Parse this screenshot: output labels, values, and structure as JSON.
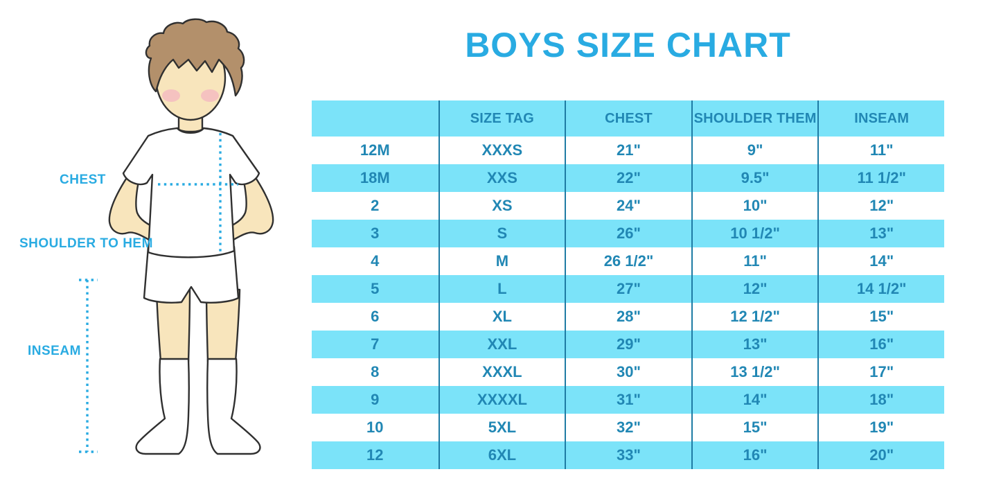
{
  "title": "BOYS SIZE CHART",
  "diagram": {
    "chest_label": "CHEST",
    "shoulder_to_hem_label": "SHOULDER TO HEM",
    "inseam_label": "INSEAM"
  },
  "chart_data": {
    "type": "table",
    "title": "BOYS SIZE CHART",
    "columns": [
      "",
      "SIZE TAG",
      "CHEST",
      "SHOULDER THEM",
      "INSEAM"
    ],
    "rows": [
      [
        "12M",
        "XXXS",
        "21\"",
        "9\"",
        "11\""
      ],
      [
        "18M",
        "XXS",
        "22\"",
        "9.5\"",
        "11 1/2\""
      ],
      [
        "2",
        "XS",
        "24\"",
        "10\"",
        "12\""
      ],
      [
        "3",
        "S",
        "26\"",
        "10 1/2\"",
        "13\""
      ],
      [
        "4",
        "M",
        "26 1/2\"",
        "11\"",
        "14\""
      ],
      [
        "5",
        "L",
        "27\"",
        "12\"",
        "14 1/2\""
      ],
      [
        "6",
        "XL",
        "28\"",
        "12 1/2\"",
        "15\""
      ],
      [
        "7",
        "XXL",
        "29\"",
        "13\"",
        "16\""
      ],
      [
        "8",
        "XXXL",
        "30\"",
        "13 1/2\"",
        "17\""
      ],
      [
        "9",
        "XXXXL",
        "31\"",
        "14\"",
        "18\""
      ],
      [
        "10",
        "5XL",
        "32\"",
        "15\"",
        "19\""
      ],
      [
        "12",
        "6XL",
        "33\"",
        "16\"",
        "20\""
      ]
    ]
  },
  "colors": {
    "accent": "#29ABE2",
    "row_cyan": "#7BE3F9",
    "table_text": "#2187B4",
    "divider": "#1E7BA4",
    "skin": "#F8E5BC",
    "hair": "#B3906B",
    "blush": "#F2AFC1",
    "outline": "#303030"
  }
}
